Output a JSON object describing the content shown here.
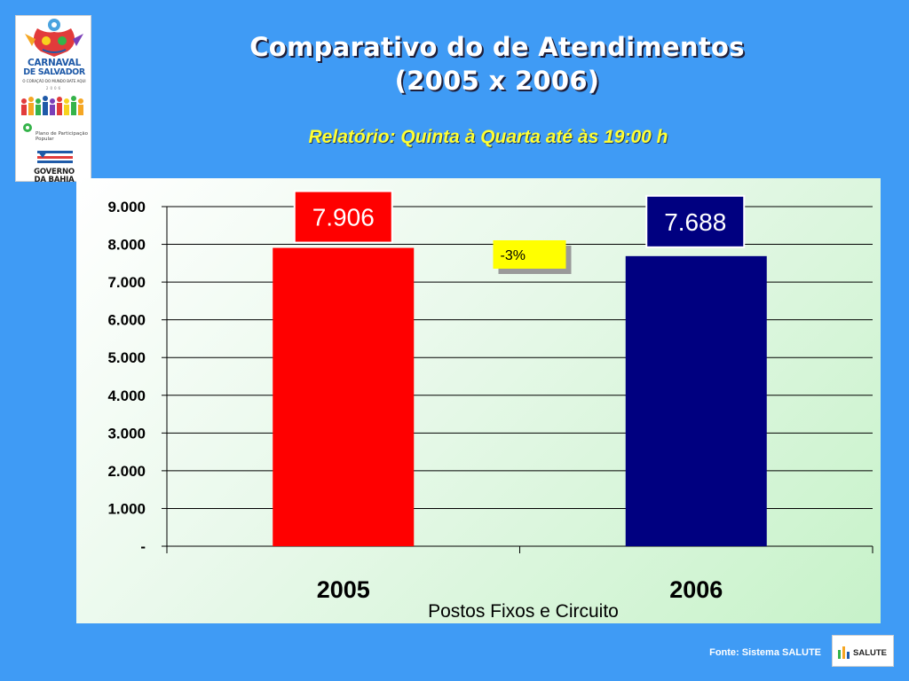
{
  "logo": {
    "carnaval": "CARNAVAL",
    "salvador": "DE SALVADOR",
    "tagline": "O CORAÇÃO DO MUNDO BATE AQUI",
    "year": "2006",
    "participacao": "Plano de Participação Popular",
    "governo": "GOVERNO",
    "bahia": "DA BAHIA"
  },
  "header": {
    "title_line1": "Comparativo do de Atendimentos",
    "title_line2": "(2005 x 2006)",
    "subtitle": "Relatório:  Quinta à Quarta até às 19:00 h"
  },
  "chart_data": {
    "type": "bar",
    "categories": [
      "2005",
      "2006"
    ],
    "values": [
      7906,
      7688
    ],
    "value_labels": [
      "7.906",
      "7.688"
    ],
    "colors": [
      "#ff0000",
      "#000080"
    ],
    "label_box_colors": [
      "#ff0000",
      "#000080"
    ],
    "xlabel": "Postos Fixos e Circuito",
    "ylabel": "",
    "ylim": [
      0,
      9000
    ],
    "yticks": [
      0,
      1000,
      2000,
      3000,
      4000,
      5000,
      6000,
      7000,
      8000,
      9000
    ],
    "ytick_labels": [
      "-",
      "1.000",
      "2.000",
      "3.000",
      "4.000",
      "5.000",
      "6.000",
      "7.000",
      "8.000",
      "9.000"
    ],
    "grid": true,
    "legend": "none",
    "annotation": {
      "text": "-3%",
      "background": "#ffff00"
    }
  },
  "footer": {
    "source": "Fonte: Sistema SALUTE",
    "salute_logo_text": "SALUTE"
  }
}
